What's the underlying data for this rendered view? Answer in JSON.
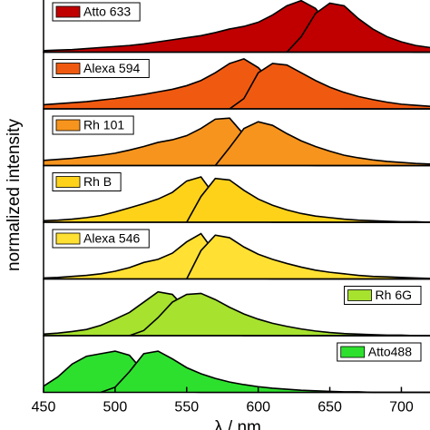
{
  "chart_data": {
    "type": "area",
    "xlabel": "λ / nm",
    "ylabel": "normalized intensity",
    "xlim": [
      450,
      720
    ],
    "xticks": [
      450,
      500,
      550,
      600,
      650,
      700
    ],
    "ylim": [
      0,
      1.1
    ],
    "x": [
      450,
      460,
      470,
      480,
      490,
      500,
      510,
      520,
      530,
      540,
      550,
      560,
      570,
      580,
      590,
      600,
      610,
      620,
      630,
      640,
      650,
      660,
      670,
      680,
      690,
      700,
      710,
      720
    ],
    "panels": [
      {
        "name": "Atto 633",
        "color": "#c00000",
        "legend_corner": "upper left",
        "series": [
          {
            "values": [
              0.03,
              0.04,
              0.05,
              0.07,
              0.09,
              0.11,
              0.13,
              0.16,
              0.2,
              0.24,
              0.28,
              0.32,
              0.38,
              0.45,
              0.5,
              0.58,
              0.72,
              0.9,
              1.0,
              0.85,
              0.5,
              0.25,
              0.12,
              0.05,
              0.02,
              0.01,
              0,
              0
            ]
          },
          {
            "values": [
              null,
              null,
              null,
              null,
              null,
              null,
              null,
              null,
              null,
              null,
              null,
              null,
              null,
              null,
              null,
              null,
              null,
              0,
              0.3,
              0.75,
              0.95,
              0.9,
              0.65,
              0.45,
              0.3,
              0.2,
              0.13,
              0.09
            ]
          }
        ]
      },
      {
        "name": "Alexa 594",
        "color": "#f05a10",
        "legend_corner": "upper left",
        "series": [
          {
            "values": [
              0.08,
              0.1,
              0.12,
              0.14,
              0.17,
              0.2,
              0.24,
              0.28,
              0.33,
              0.38,
              0.45,
              0.55,
              0.7,
              0.88,
              0.97,
              0.8,
              0.5,
              0.22,
              0.08,
              0.03,
              0.01,
              0,
              0,
              0,
              0,
              0,
              0,
              0
            ]
          },
          {
            "values": [
              null,
              null,
              null,
              null,
              null,
              null,
              null,
              null,
              null,
              null,
              null,
              null,
              null,
              0,
              0.2,
              0.7,
              0.88,
              0.85,
              0.7,
              0.55,
              0.42,
              0.32,
              0.24,
              0.18,
              0.13,
              0.09,
              0.07,
              0.05
            ]
          }
        ]
      },
      {
        "name": "Rh 101",
        "color": "#f7941d",
        "legend_corner": "upper left",
        "series": [
          {
            "values": [
              0.1,
              0.12,
              0.14,
              0.17,
              0.2,
              0.24,
              0.3,
              0.37,
              0.45,
              0.5,
              0.58,
              0.72,
              0.9,
              0.92,
              0.6,
              0.3,
              0.12,
              0.04,
              0.01,
              0,
              0,
              0,
              0,
              0,
              0,
              0,
              0,
              0
            ]
          },
          {
            "values": [
              null,
              null,
              null,
              null,
              null,
              null,
              null,
              null,
              null,
              null,
              null,
              null,
              0,
              0.35,
              0.72,
              0.85,
              0.78,
              0.62,
              0.48,
              0.37,
              0.28,
              0.2,
              0.15,
              0.11,
              0.08,
              0.06,
              0.04,
              0.03
            ]
          }
        ]
      },
      {
        "name": "Rh B",
        "color": "#ffd21a",
        "legend_corner": "upper left",
        "series": [
          {
            "values": [
              0.03,
              0.04,
              0.06,
              0.09,
              0.13,
              0.2,
              0.28,
              0.36,
              0.45,
              0.58,
              0.8,
              0.88,
              0.5,
              0.2,
              0.06,
              0.02,
              0,
              0,
              0,
              0,
              0,
              0,
              0,
              0,
              0,
              0,
              0,
              0
            ]
          },
          {
            "values": [
              null,
              null,
              null,
              null,
              null,
              null,
              null,
              null,
              null,
              null,
              0,
              0.5,
              0.85,
              0.82,
              0.62,
              0.45,
              0.33,
              0.24,
              0.17,
              0.12,
              0.09,
              0.06,
              0.04,
              0.03,
              0.02,
              0.01,
              0.01,
              0
            ]
          }
        ]
      },
      {
        "name": "Alexa 546",
        "color": "#ffe033",
        "legend_corner": "upper left",
        "series": [
          {
            "values": [
              0.02,
              0.03,
              0.05,
              0.07,
              0.1,
              0.15,
              0.22,
              0.32,
              0.38,
              0.5,
              0.72,
              0.88,
              0.5,
              0.15,
              0.04,
              0.01,
              0,
              0,
              0,
              0,
              0,
              0,
              0,
              0,
              0,
              0,
              0,
              0
            ]
          },
          {
            "values": [
              null,
              null,
              null,
              null,
              null,
              null,
              null,
              null,
              null,
              null,
              0,
              0.55,
              0.85,
              0.8,
              0.62,
              0.48,
              0.38,
              0.3,
              0.23,
              0.17,
              0.13,
              0.1,
              0.07,
              0.05,
              0.04,
              0.03,
              0.02,
              0.01
            ]
          }
        ]
      },
      {
        "name": "Rh 6G",
        "color": "#a6e22e",
        "legend_corner": "upper right",
        "series": [
          {
            "values": [
              0.03,
              0.05,
              0.08,
              0.12,
              0.2,
              0.32,
              0.45,
              0.65,
              0.85,
              0.8,
              0.5,
              0.2,
              0.06,
              0.02,
              0,
              0,
              0,
              0,
              0,
              0,
              0,
              0,
              0,
              0,
              0,
              0,
              0,
              0
            ]
          },
          {
            "values": [
              null,
              null,
              null,
              null,
              null,
              null,
              0,
              0.1,
              0.35,
              0.65,
              0.8,
              0.82,
              0.7,
              0.55,
              0.42,
              0.32,
              0.24,
              0.18,
              0.13,
              0.09,
              0.06,
              0.04,
              0.03,
              0.02,
              0.01,
              0.01,
              0,
              0
            ]
          }
        ]
      },
      {
        "name": "Atto488",
        "color": "#2ee02e",
        "legend_corner": "upper right",
        "series": [
          {
            "values": [
              0.12,
              0.3,
              0.55,
              0.7,
              0.75,
              0.8,
              0.72,
              0.4,
              0.12,
              0.03,
              0.01,
              0,
              0,
              0,
              0,
              0,
              0,
              0,
              0,
              0,
              0,
              0,
              0,
              0,
              0,
              0,
              0,
              0
            ]
          },
          {
            "values": [
              null,
              null,
              null,
              null,
              0,
              0.1,
              0.4,
              0.75,
              0.8,
              0.65,
              0.48,
              0.36,
              0.27,
              0.2,
              0.15,
              0.11,
              0.08,
              0.06,
              0.04,
              0.03,
              0.02,
              0.01,
              0.01,
              0,
              0,
              0,
              0,
              0
            ]
          }
        ]
      }
    ]
  }
}
